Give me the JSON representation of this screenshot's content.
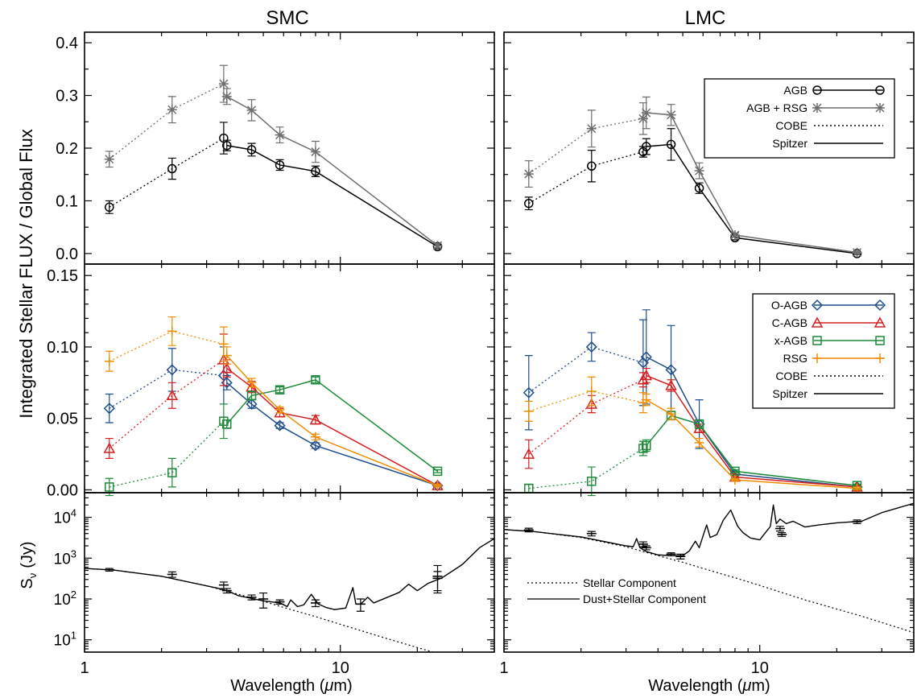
{
  "figure": {
    "ylabel_top": "Integrated Stellar FLUX / Global Flux",
    "ylabel_bottom_main": "S",
    "ylabel_bottom_sub": "ν",
    "ylabel_bottom_unit": "(Jy)",
    "columns": [
      {
        "title": "SMC",
        "xlabel_main": "Wavelength (",
        "xlabel_mu": "μ",
        "xlabel_end": "m)"
      },
      {
        "title": "LMC",
        "xlabel_main": "Wavelength (",
        "xlabel_mu": "μ",
        "xlabel_end": "m)"
      }
    ]
  },
  "legends": {
    "top": [
      "AGB",
      "AGB + RSG",
      "COBE",
      "Spitzer"
    ],
    "middle": [
      "O-AGB",
      "C-AGB",
      "x-AGB",
      "RSG",
      "COBE",
      "Spitzer"
    ],
    "bottom": [
      "Stellar Component",
      "Dust+Stellar Component"
    ]
  },
  "colors": {
    "agb": "#000000",
    "agb_rsg": "#6e6e6e",
    "o_agb": "#1f4e8c",
    "c_agb": "#d42020",
    "x_agb": "#1f8a3a",
    "rsg": "#f08c00"
  },
  "chart_data": [
    {
      "type": "line",
      "panel": "SMC top",
      "x_scale": "log",
      "xlim": [
        1,
        40
      ],
      "ylim": [
        -0.02,
        0.42
      ],
      "yticks": [
        "0.0",
        "0.1",
        "0.2",
        "0.3",
        "0.4"
      ],
      "yticks_values": [
        0,
        0.1,
        0.2,
        0.3,
        0.4
      ],
      "xticks": [
        "1",
        "10"
      ],
      "xticks_values": [
        1,
        10
      ],
      "cobe_x": [
        1.25,
        2.2,
        3.5
      ],
      "spitzer_x": [
        3.6,
        4.5,
        5.8,
        8.0,
        24.0
      ],
      "series": [
        {
          "name": "AGB",
          "color_key": "agb",
          "marker": "circle",
          "cobe": [
            0.088,
            0.161,
            0.219
          ],
          "cobe_err": [
            0.012,
            0.02,
            0.03
          ],
          "spitzer": [
            0.205,
            0.197,
            0.168,
            0.156,
            0.013
          ],
          "spitzer_err": [
            0.01,
            0.012,
            0.01,
            0.01,
            0.004
          ]
        },
        {
          "name": "AGB + RSG",
          "color_key": "agb_rsg",
          "marker": "asterisk",
          "cobe": [
            0.179,
            0.273,
            0.322
          ],
          "cobe_err": [
            0.015,
            0.025,
            0.035
          ],
          "spitzer": [
            0.298,
            0.272,
            0.225,
            0.193,
            0.015
          ],
          "spitzer_err": [
            0.015,
            0.02,
            0.015,
            0.02,
            0.004
          ]
        }
      ]
    },
    {
      "type": "line",
      "panel": "LMC top",
      "x_scale": "log",
      "xlim": [
        1,
        40
      ],
      "ylim": [
        -0.02,
        0.42
      ],
      "xticks": [
        "1",
        "10"
      ],
      "xticks_values": [
        1,
        10
      ],
      "cobe_x": [
        1.25,
        2.2,
        3.5
      ],
      "spitzer_x": [
        3.6,
        4.5,
        5.8,
        8.0,
        24.0
      ],
      "series": [
        {
          "name": "AGB",
          "color_key": "agb",
          "marker": "circle",
          "cobe": [
            0.095,
            0.166,
            0.193
          ],
          "cobe_err": [
            0.012,
            0.03,
            0.01
          ],
          "spitzer": [
            0.203,
            0.207,
            0.124,
            0.03,
            0.0
          ],
          "spitzer_err": [
            0.015,
            0.03,
            0.01,
            0.004,
            0.002
          ]
        },
        {
          "name": "AGB + RSG",
          "color_key": "agb_rsg",
          "marker": "asterisk",
          "cobe": [
            0.151,
            0.237,
            0.256
          ],
          "cobe_err": [
            0.025,
            0.035,
            0.03
          ],
          "spitzer": [
            0.267,
            0.263,
            0.157,
            0.035,
            0.002
          ],
          "spitzer_err": [
            0.03,
            0.02,
            0.015,
            0.004,
            0.002
          ]
        }
      ]
    },
    {
      "type": "line",
      "panel": "SMC middle",
      "x_scale": "log",
      "xlim": [
        1,
        40
      ],
      "ylim": [
        -0.002,
        0.158
      ],
      "yticks": [
        "0.00",
        "0.05",
        "0.10",
        "0.15"
      ],
      "yticks_values": [
        0,
        0.05,
        0.1,
        0.15
      ],
      "xticks": [
        "1",
        "10"
      ],
      "xticks_values": [
        1,
        10
      ],
      "cobe_x": [
        1.25,
        2.2,
        3.5
      ],
      "spitzer_x": [
        3.6,
        4.5,
        5.8,
        8.0,
        24.0
      ],
      "series": [
        {
          "name": "O-AGB",
          "color_key": "o_agb",
          "marker": "diamond",
          "cobe": [
            0.057,
            0.084,
            0.08
          ],
          "cobe_err": [
            0.01,
            0.015,
            0.02
          ],
          "spitzer": [
            0.075,
            0.06,
            0.045,
            0.031,
            0.003
          ],
          "spitzer_err": [
            0.005,
            0.003,
            0.002,
            0.002,
            0.001
          ]
        },
        {
          "name": "C-AGB",
          "color_key": "c_agb",
          "marker": "triangle",
          "cobe": [
            0.029,
            0.066,
            0.091
          ],
          "cobe_err": [
            0.007,
            0.009,
            0.018
          ],
          "spitzer": [
            0.085,
            0.072,
            0.054,
            0.049,
            0.003
          ],
          "spitzer_err": [
            0.006,
            0.004,
            0.003,
            0.003,
            0.001
          ]
        },
        {
          "name": "x-AGB",
          "color_key": "x_agb",
          "marker": "square",
          "cobe": [
            0.002,
            0.012,
            0.048
          ],
          "cobe_err": [
            0.006,
            0.01,
            0.012
          ],
          "spitzer": [
            0.046,
            0.066,
            0.07,
            0.077,
            0.013
          ],
          "spitzer_err": [
            0.003,
            0.003,
            0.002,
            0.002,
            0.001
          ]
        },
        {
          "name": "RSG",
          "color_key": "rsg",
          "marker": "plus",
          "cobe": [
            0.09,
            0.111,
            0.102
          ],
          "cobe_err": [
            0.007,
            0.01,
            0.012
          ],
          "spitzer": [
            0.094,
            0.075,
            0.056,
            0.037,
            0.003
          ],
          "spitzer_err": [
            0.006,
            0.003,
            0.002,
            0.002,
            0.001
          ]
        }
      ]
    },
    {
      "type": "line",
      "panel": "LMC middle",
      "x_scale": "log",
      "xlim": [
        1,
        40
      ],
      "ylim": [
        -0.002,
        0.158
      ],
      "xticks": [
        "1",
        "10"
      ],
      "xticks_values": [
        1,
        10
      ],
      "cobe_x": [
        1.25,
        2.2,
        3.5
      ],
      "spitzer_x": [
        3.6,
        4.5,
        5.8,
        8.0,
        24.0
      ],
      "series": [
        {
          "name": "O-AGB",
          "color_key": "o_agb",
          "marker": "diamond",
          "cobe": [
            0.068,
            0.1,
            0.089
          ],
          "cobe_err": [
            0.026,
            0.01,
            0.03
          ],
          "spitzer": [
            0.093,
            0.084,
            0.046,
            0.011,
            0.002
          ],
          "spitzer_err": [
            0.033,
            0.031,
            0.017,
            0.002,
            0.001
          ]
        },
        {
          "name": "C-AGB",
          "color_key": "c_agb",
          "marker": "triangle",
          "cobe": [
            0.025,
            0.06,
            0.077
          ],
          "cobe_err": [
            0.01,
            0.006,
            0.005
          ],
          "spitzer": [
            0.08,
            0.073,
            0.043,
            0.009,
            0.002
          ],
          "spitzer_err": [
            0.005,
            0.004,
            0.003,
            0.001,
            0.001
          ]
        },
        {
          "name": "x-AGB",
          "color_key": "x_agb",
          "marker": "square",
          "cobe": [
            0.001,
            0.006,
            0.029
          ],
          "cobe_err": [
            0.003,
            0.01,
            0.005
          ],
          "spitzer": [
            0.031,
            0.052,
            0.046,
            0.013,
            0.003
          ],
          "spitzer_err": [
            0.004,
            0.003,
            0.003,
            0.001,
            0.001
          ]
        },
        {
          "name": "RSG",
          "color_key": "rsg",
          "marker": "plus",
          "cobe": [
            0.055,
            0.069,
            0.061
          ],
          "cobe_err": [
            0.007,
            0.01,
            0.007
          ],
          "spitzer": [
            0.063,
            0.053,
            0.033,
            0.007,
            0.001
          ],
          "spitzer_err": [
            0.004,
            0.004,
            0.003,
            0.001,
            0.001
          ]
        }
      ]
    },
    {
      "type": "line",
      "panel": "SMC bottom",
      "x_scale": "log",
      "y_scale": "log",
      "xlim": [
        1,
        40
      ],
      "ylim": [
        5,
        40000
      ],
      "ytick_values": [
        10,
        100,
        1000,
        10000
      ],
      "ytick_exponents": [
        "1",
        "2",
        "3",
        "4"
      ],
      "ytick_base": "10",
      "xticks": [
        "1",
        "10"
      ],
      "xticks_values": [
        1,
        10
      ],
      "stellar": {
        "x": [
          1,
          1.3,
          2,
          3,
          4,
          5,
          6,
          8,
          10,
          15,
          25,
          40
        ],
        "y": [
          560,
          510,
          360,
          210,
          130,
          88,
          62,
          37,
          24,
          11,
          4.3,
          1.8
        ]
      },
      "dust_stellar": {
        "x": [
          1,
          1.3,
          2,
          3,
          3.3,
          3.6,
          4,
          5,
          5.8,
          6.2,
          6.4,
          6.8,
          7.2,
          7.7,
          8.2,
          8.8,
          9.5,
          10.5,
          11.2,
          11.5,
          12,
          12.8,
          13.5,
          15,
          17,
          18.5,
          20,
          22,
          25,
          30,
          35,
          40
        ],
        "y": [
          560,
          510,
          360,
          210,
          185,
          160,
          120,
          90,
          80,
          65,
          95,
          65,
          72,
          130,
          75,
          62,
          55,
          60,
          190,
          75,
          75,
          110,
          80,
          105,
          145,
          230,
          160,
          240,
          330,
          700,
          1800,
          3000
        ]
      },
      "points": {
        "x": [
          1.25,
          2.2,
          3.5,
          3.6,
          4.5,
          5.0,
          5.8,
          8.0,
          12.0,
          24.0,
          24.0
        ],
        "y": [
          520,
          400,
          220,
          160,
          110,
          100,
          85,
          80,
          75,
          360,
          320
        ],
        "err_lo": [
          40,
          60,
          40,
          20,
          15,
          40,
          10,
          15,
          25,
          200,
          180
        ],
        "err_hi": [
          40,
          60,
          40,
          20,
          15,
          40,
          10,
          15,
          25,
          300,
          150
        ]
      }
    },
    {
      "type": "line",
      "panel": "LMC bottom",
      "x_scale": "log",
      "y_scale": "log",
      "xlim": [
        1,
        40
      ],
      "ylim": [
        5,
        40000
      ],
      "xticks": [
        "1",
        "10"
      ],
      "xticks_values": [
        1,
        10
      ],
      "stellar": {
        "x": [
          1,
          1.3,
          2,
          3,
          4,
          5,
          6,
          8,
          10,
          15,
          25,
          40
        ],
        "y": [
          5000,
          4500,
          3200,
          1900,
          1150,
          790,
          560,
          330,
          215,
          95,
          38,
          15
        ]
      },
      "dust_stellar": {
        "x": [
          1,
          1.3,
          2,
          3,
          3.2,
          3.3,
          3.4,
          3.6,
          4,
          4.5,
          5,
          5.3,
          5.6,
          5.8,
          6.0,
          6.2,
          6.4,
          6.8,
          7.2,
          7.7,
          8.2,
          8.6,
          9.2,
          10,
          11,
          11.3,
          11.6,
          12,
          12.7,
          13.5,
          15,
          17,
          20,
          25,
          30,
          40
        ],
        "y": [
          5000,
          4500,
          3300,
          2000,
          1900,
          3000,
          1800,
          1450,
          1200,
          1150,
          1150,
          1500,
          2600,
          1800,
          3500,
          6500,
          3200,
          3800,
          8500,
          15000,
          6000,
          4200,
          3100,
          2800,
          6000,
          20000,
          7000,
          9000,
          7000,
          8000,
          5800,
          6500,
          7300,
          8000,
          13000,
          22000
        ]
      },
      "points": {
        "x": [
          1.25,
          2.2,
          3.5,
          3.6,
          4.5,
          4.9,
          12.0,
          12.2,
          24.0
        ],
        "y": [
          4900,
          4000,
          2200,
          1800,
          1250,
          1100,
          5300,
          3800,
          7800
        ],
        "err_lo": [
          500,
          500,
          300,
          200,
          100,
          150,
          700,
          400,
          800
        ],
        "err_hi": [
          500,
          500,
          300,
          200,
          100,
          150,
          700,
          400,
          800
        ]
      }
    }
  ]
}
